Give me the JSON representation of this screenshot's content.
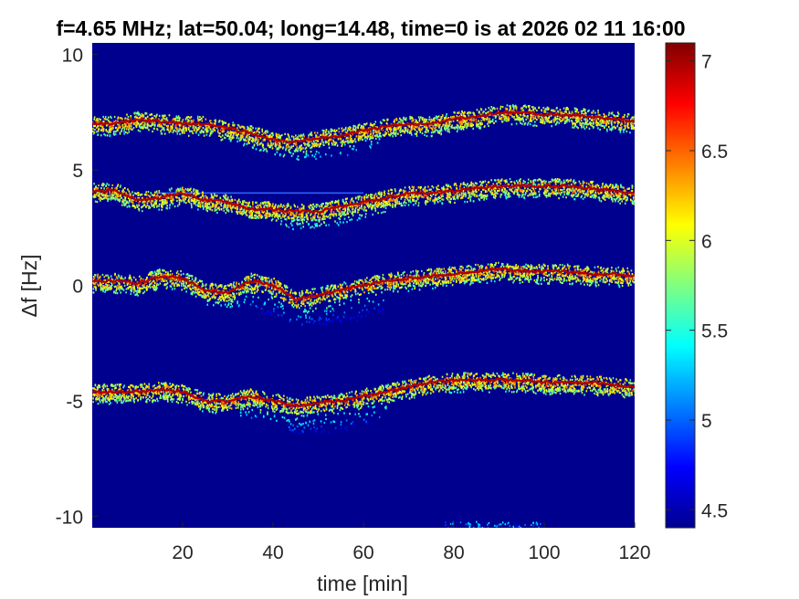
{
  "chart_data": {
    "type": "heatmap",
    "title": "f=4.65 MHz;  lat=50.04; long=14.48, time=0 is at 2026 02 11 16:00",
    "xlabel": "time [min]",
    "ylabel": "Δf [Hz]",
    "xlim": [
      0,
      120
    ],
    "ylim": [
      -10.5,
      10.5
    ],
    "clim": [
      4.4,
      7.1
    ],
    "colormap": "jet",
    "background_color": "#00008f",
    "x_ticks": [
      20,
      40,
      60,
      80,
      100,
      120
    ],
    "x_tick_labels": [
      "20",
      "40",
      "60",
      "80",
      "100",
      "120"
    ],
    "y_ticks": [
      10,
      5,
      0,
      -5,
      -10
    ],
    "y_tick_labels": [
      "10",
      "5",
      "0",
      "-5",
      "-10"
    ],
    "colorbar_ticks": [
      4.5,
      5,
      5.5,
      6,
      6.5,
      7
    ],
    "colorbar_tick_labels": [
      "4.5",
      "5",
      "5.5",
      "6",
      "6.5",
      "7"
    ],
    "series": [
      {
        "x": [
          0,
          5,
          10,
          15,
          20,
          25,
          30,
          35,
          40,
          45,
          50,
          55,
          60,
          65,
          70,
          75,
          80,
          85,
          90,
          95,
          100,
          105,
          110,
          115,
          120
        ],
        "values": [
          7.0,
          7.0,
          7.2,
          7.1,
          7.0,
          7.0,
          6.8,
          6.6,
          6.3,
          6.2,
          6.4,
          6.5,
          6.7,
          6.9,
          7.0,
          7.0,
          7.2,
          7.3,
          7.5,
          7.5,
          7.4,
          7.4,
          7.3,
          7.2,
          7.1
        ]
      },
      {
        "x": [
          0,
          5,
          10,
          15,
          20,
          25,
          30,
          35,
          40,
          45,
          50,
          55,
          60,
          65,
          70,
          75,
          80,
          85,
          90,
          95,
          100,
          105,
          110,
          115,
          120
        ],
        "values": [
          4.1,
          4.1,
          3.7,
          3.8,
          4.0,
          3.7,
          3.6,
          3.3,
          3.3,
          3.2,
          3.2,
          3.4,
          3.6,
          3.8,
          4.0,
          4.0,
          4.1,
          4.2,
          4.3,
          4.3,
          4.3,
          4.3,
          4.2,
          4.1,
          4.0
        ]
      },
      {
        "x": [
          0,
          5,
          10,
          15,
          20,
          25,
          30,
          35,
          40,
          45,
          50,
          55,
          60,
          65,
          70,
          75,
          80,
          85,
          90,
          95,
          100,
          105,
          110,
          115,
          120
        ],
        "values": [
          0.2,
          0.2,
          0.1,
          0.4,
          0.3,
          -0.2,
          -0.3,
          0.2,
          0.0,
          -0.6,
          -0.4,
          -0.2,
          0.0,
          0.2,
          0.3,
          0.4,
          0.5,
          0.6,
          0.7,
          0.6,
          0.6,
          0.6,
          0.5,
          0.5,
          0.4
        ]
      },
      {
        "x": [
          0,
          5,
          10,
          15,
          20,
          25,
          30,
          35,
          40,
          45,
          50,
          55,
          60,
          65,
          70,
          75,
          80,
          85,
          90,
          95,
          100,
          105,
          110,
          115,
          120
        ],
        "values": [
          -4.6,
          -4.6,
          -4.6,
          -4.5,
          -4.6,
          -5.0,
          -5.0,
          -4.8,
          -5.0,
          -5.2,
          -5.1,
          -5.0,
          -4.8,
          -4.6,
          -4.4,
          -4.2,
          -4.1,
          -4.1,
          -4.1,
          -4.1,
          -4.2,
          -4.2,
          -4.2,
          -4.3,
          -4.4
        ]
      }
    ],
    "spread_below": [
      {
        "x": [
          25,
          35,
          45,
          55,
          65
        ],
        "values": [
          6.5,
          6.0,
          5.4,
          5.6,
          6.2
        ]
      },
      {
        "x": [
          30,
          40,
          45,
          55,
          65
        ],
        "values": [
          3.2,
          2.8,
          2.4,
          2.6,
          3.2
        ]
      },
      {
        "x": [
          25,
          35,
          45,
          55,
          65
        ],
        "values": [
          -0.8,
          -1.0,
          -1.7,
          -1.8,
          -1.0
        ]
      },
      {
        "x": [
          30,
          40,
          45,
          55,
          65
        ],
        "values": [
          -5.6,
          -5.8,
          -6.4,
          -6.4,
          -5.6
        ]
      }
    ],
    "faint_line": {
      "x": [
        14,
        60
      ],
      "y": 4.0
    },
    "bottom_feature": {
      "x": [
        78,
        100
      ],
      "y": -10.4
    }
  }
}
